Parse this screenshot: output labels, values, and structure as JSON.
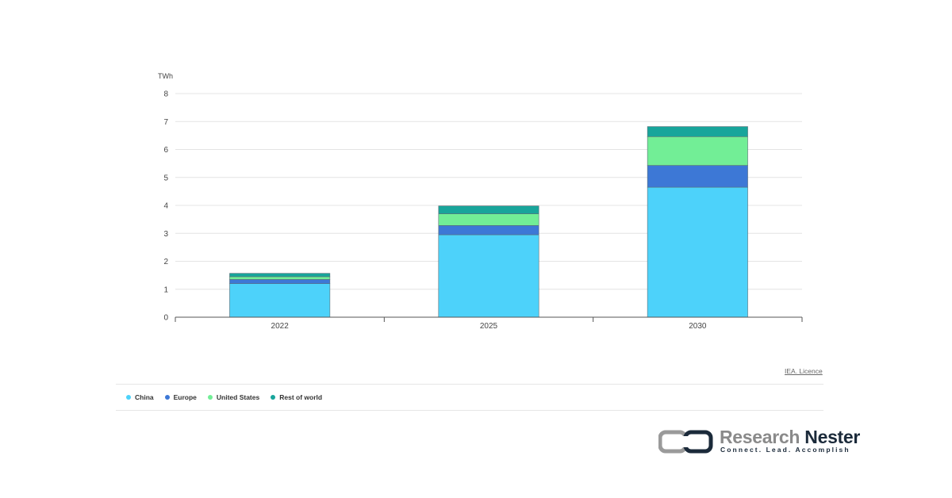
{
  "chart_data": {
    "type": "bar",
    "stacked": true,
    "unit_label": "TWh",
    "categories": [
      "2022",
      "2025",
      "2030"
    ],
    "series": [
      {
        "name": "China",
        "color": "#4dd2fa",
        "values": [
          1.2,
          2.95,
          4.65
        ]
      },
      {
        "name": "Europe",
        "color": "#3d78d6",
        "values": [
          0.15,
          0.33,
          0.78
        ]
      },
      {
        "name": "United States",
        "color": "#72ee96",
        "values": [
          0.1,
          0.42,
          1.03
        ]
      },
      {
        "name": "Rest of world",
        "color": "#18a59b",
        "values": [
          0.12,
          0.28,
          0.36
        ]
      }
    ],
    "ylim": [
      0,
      8
    ],
    "yticks": [
      "0",
      "1",
      "2",
      "3",
      "4",
      "5",
      "6",
      "7",
      "8"
    ],
    "grid": true,
    "legend_position": "bottom"
  },
  "source_link": "IEA. Licence",
  "brand": {
    "name_part1": "Research",
    "name_part2": "Nester",
    "tagline": "Connect. Lead. Accomplish"
  }
}
